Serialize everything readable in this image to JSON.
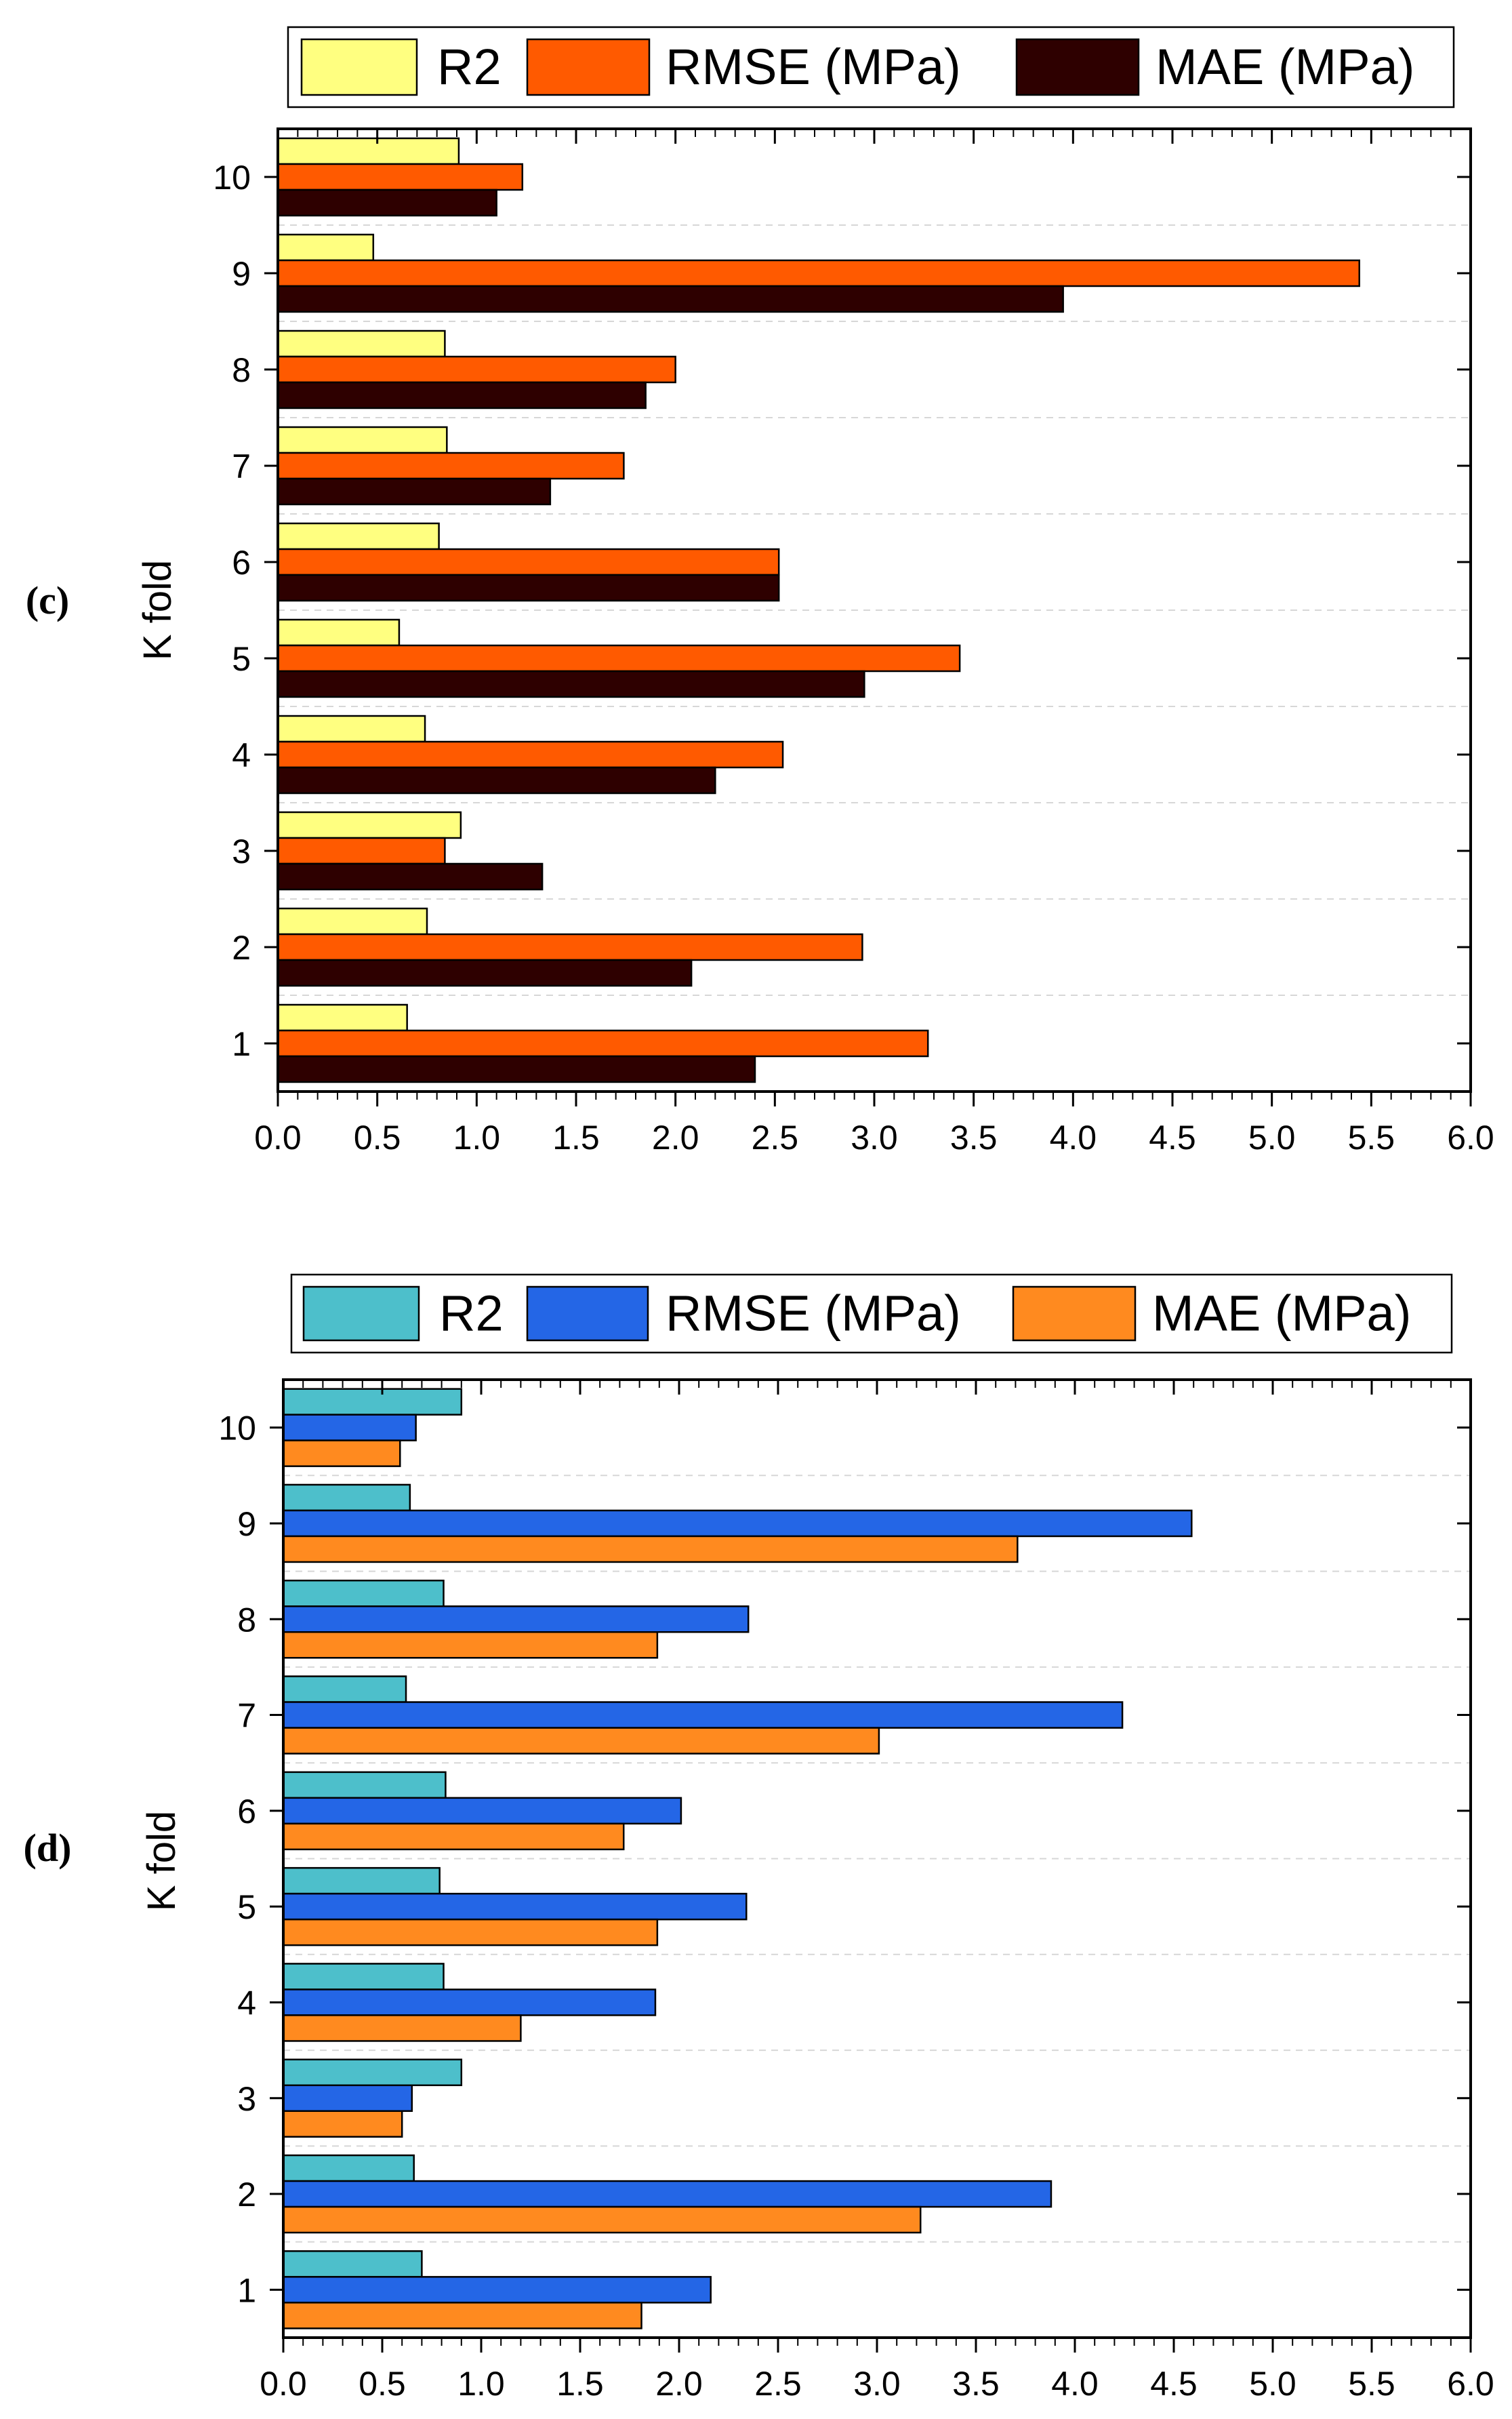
{
  "chart_data": [
    {
      "type": "bar",
      "orientation": "horizontal",
      "panel_label": "(c)",
      "ylabel": "K fold",
      "xlabel": "",
      "categories": [
        "1",
        "2",
        "3",
        "4",
        "5",
        "6",
        "7",
        "8",
        "9",
        "10"
      ],
      "xlim": [
        0,
        6
      ],
      "xticks": [
        "0.0",
        "0.5",
        "1.0",
        "1.5",
        "2.0",
        "2.5",
        "3.0",
        "3.5",
        "4.0",
        "4.5",
        "5.0",
        "5.5",
        "6.0"
      ],
      "grid": "horizontal dashed",
      "legend_position": "top",
      "series": [
        {
          "name": "R2",
          "color": "#FFFF80",
          "values": [
            0.65,
            0.75,
            0.92,
            0.74,
            0.61,
            0.81,
            0.85,
            0.84,
            0.48,
            0.91
          ]
        },
        {
          "name": "RMSE (MPa)",
          "color": "#FF5A00",
          "values": [
            3.27,
            2.94,
            0.84,
            2.54,
            3.43,
            2.52,
            1.74,
            2.0,
            5.44,
            1.23
          ]
        },
        {
          "name": "MAE (MPa)",
          "color": "#2E0000",
          "values": [
            2.4,
            2.08,
            1.33,
            2.2,
            2.95,
            2.52,
            1.37,
            1.85,
            3.95,
            1.1
          ]
        }
      ]
    },
    {
      "type": "bar",
      "orientation": "horizontal",
      "panel_label": "(d)",
      "ylabel": "K fold",
      "xlabel": "",
      "categories": [
        "1",
        "2",
        "3",
        "4",
        "5",
        "6",
        "7",
        "8",
        "9",
        "10"
      ],
      "xlim": [
        0,
        6
      ],
      "xticks": [
        "0.0",
        "0.5",
        "1.0",
        "1.5",
        "2.0",
        "2.5",
        "3.0",
        "3.5",
        "4.0",
        "4.5",
        "5.0",
        "5.5",
        "6.0"
      ],
      "grid": "horizontal dashed",
      "legend_position": "top",
      "series": [
        {
          "name": "R2",
          "color": "#4DBFCB",
          "values": [
            0.7,
            0.66,
            0.9,
            0.81,
            0.79,
            0.82,
            0.62,
            0.81,
            0.64,
            0.9
          ]
        },
        {
          "name": "RMSE (MPa)",
          "color": "#2466E6",
          "values": [
            2.16,
            3.88,
            0.65,
            1.88,
            2.34,
            2.01,
            4.24,
            2.35,
            4.59,
            0.67
          ]
        },
        {
          "name": "MAE (MPa)",
          "color": "#FF8A1F",
          "values": [
            1.81,
            3.22,
            0.6,
            1.2,
            1.89,
            1.72,
            3.01,
            1.89,
            3.71,
            0.59
          ]
        }
      ]
    }
  ]
}
